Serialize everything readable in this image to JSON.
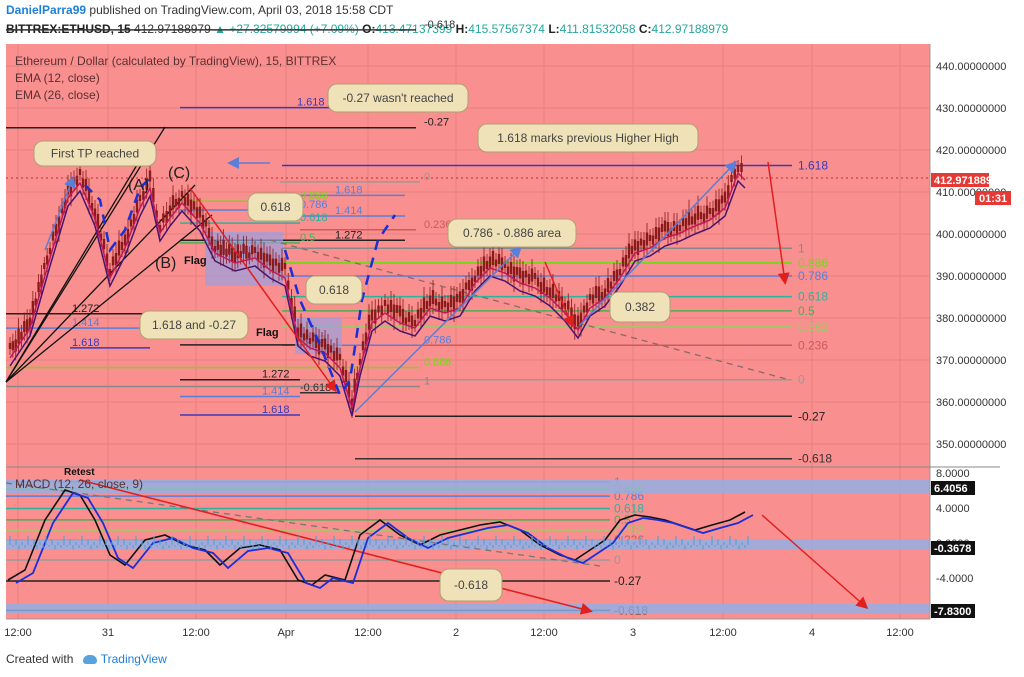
{
  "header": {
    "author": "DanielParra99",
    "published_text": "published on TradingView.com, April 03, 2018 15:58 CDT",
    "symbol": "BITTREX:ETHUSD, 15",
    "last": "412.97188979",
    "change": "▲ +27.32579994 (+7.09%)",
    "o_label": "O:",
    "o": "413.47137399",
    "h_label": "H:",
    "h": "415.57567374",
    "l_label": "L:",
    "l": "411.81532058",
    "c_label": "C:",
    "c": "412.97188979"
  },
  "legend": {
    "title": "Ethereum / Dollar (calculated by TradingView), 15, BITTREX",
    "ema1": "EMA (12, close)",
    "ema2": "EMA (26, close)",
    "macd": "MACD (12, 26, close, 9)"
  },
  "colors": {
    "panel_bg": "#f98f8f",
    "grid": "#e88080",
    "candle": "#8b1a1a",
    "ema_fast": "#c2185b",
    "ema_slow": "#4a1470",
    "fib_green": "#7ed321",
    "fib_blue": "#6c6cdc",
    "arrow_red": "#e0201e",
    "callout_bg": "#f0e2b8",
    "macd_blue": "#1a2fd6",
    "signal": "#111111"
  },
  "annotations": {
    "first_tp": "First TP reached",
    "not_reached": "-0.27 wasn't reached",
    "higher_high": "1.618 marks previous Higher High",
    "area": "0.786 - 0.886 area",
    "c382": "0.382",
    "c618a": "0.618",
    "c618b": "0.618",
    "c1618": "1.618 and -0.27",
    "m618": "-0.618",
    "wave_a": "(A)",
    "wave_b": "(B)",
    "wave_c": "(C)",
    "flag1": "Flag",
    "flag2": "Flag",
    "retest": "Retest"
  },
  "price_axis": {
    "ticks": [
      "440.00000000",
      "430.00000000",
      "420.00000000",
      "410.00000000",
      "400.00000000",
      "390.00000000",
      "380.00000000",
      "370.00000000",
      "360.00000000",
      "350.00000000"
    ],
    "current": "412.97188979",
    "countdown": "01:31"
  },
  "macd_axis": {
    "ticks": [
      "8.0000",
      "4.0000",
      "0.0000",
      "-4.0000"
    ],
    "label_top": "6.4056",
    "label_mid": "-0.3678",
    "label_bot": "-7.8300"
  },
  "time_axis": [
    "12:00",
    "31",
    "12:00",
    "Apr",
    "12:00",
    "2",
    "12:00",
    "3",
    "12:00",
    "4",
    "12:00"
  ],
  "footer": {
    "created": "Created with",
    "brand": "TradingView"
  },
  "chart_data": {
    "type": "line",
    "title": "Ethereum / Dollar (calculated by TradingView), 15, BITTREX",
    "x": [
      "31 00:00",
      "31 12:00",
      "Apr 1 00:00",
      "Apr 1 12:00",
      "2 00:00",
      "2 12:00",
      "3 00:00",
      "3 12:00"
    ],
    "series": [
      {
        "name": "Ethereum / Dollar",
        "values": [
          392,
          402,
          388,
          362,
          383,
          392,
          385,
          413
        ]
      }
    ],
    "ylim": [
      345,
      448
    ],
    "fib_levels_right": [
      {
        "label": "1.618",
        "price": 416.3
      },
      {
        "label": "1",
        "price": 396.6
      },
      {
        "label": "0.886",
        "price": 393.1
      },
      {
        "label": "0.786",
        "price": 390.0
      },
      {
        "label": "0.618",
        "price": 385.1
      },
      {
        "label": "0.5",
        "price": 381.7
      },
      {
        "label": "0.382",
        "price": 377.9
      },
      {
        "label": "0.236",
        "price": 373.5
      },
      {
        "label": "0",
        "price": 365.3
      },
      {
        "label": "-0.27",
        "price": 356.6
      },
      {
        "label": "-0.618",
        "price": 346.5
      }
    ],
    "fib_levels_left": [
      {
        "label": "1.618",
        "price": 430.1
      },
      {
        "label": "-0.27",
        "price": 425.3
      },
      {
        "label": "1.618",
        "price": 409.2
      },
      {
        "label": "0.886",
        "price": 407.8
      },
      {
        "label": "0.786",
        "price": 405.7
      },
      {
        "label": "1.414",
        "price": 404.3
      },
      {
        "label": "0.618",
        "price": 402.6
      },
      {
        "label": "0.236",
        "price": 401.0
      },
      {
        "label": "1.272",
        "price": 398.5
      },
      {
        "label": "0.5",
        "price": 397.9
      },
      {
        "label": "1.272",
        "price": 381.0
      },
      {
        "label": "1.414",
        "price": 377.6
      },
      {
        "label": "1.618",
        "price": 372.9
      },
      {
        "label": "0.27",
        "price": 373.6
      },
      {
        "label": "0.786",
        "price": 373.5
      },
      {
        "label": "0.886",
        "price": 368.2
      },
      {
        "label": "1.272",
        "price": 365.3
      },
      {
        "label": "1",
        "price": 363.7
      },
      {
        "label": "-0.618",
        "price": 362.2
      },
      {
        "label": "1.414",
        "price": 361.3
      },
      {
        "label": "1.618",
        "price": 356.9
      },
      {
        "label": "0",
        "price": 412.4
      },
      {
        "label": "-0.618",
        "price": 448.6
      }
    ],
    "macd_levels": [
      {
        "label": "1",
        "value": 6.98
      },
      {
        "label": "0.886",
        "value": 6.2
      },
      {
        "label": "0.786",
        "value": 5.36
      },
      {
        "label": "0.618",
        "value": 3.94
      },
      {
        "label": "0.5",
        "value": 2.64
      },
      {
        "label": "0.382",
        "value": 1.48
      },
      {
        "label": "0.236",
        "value": 0.36
      },
      {
        "label": "0",
        "value": -1.94
      },
      {
        "label": "-0.27",
        "value": -4.34
      },
      {
        "label": "-0.618",
        "value": -7.7
      }
    ],
    "macd_ylim": [
      -8.5,
      8.5
    ]
  }
}
